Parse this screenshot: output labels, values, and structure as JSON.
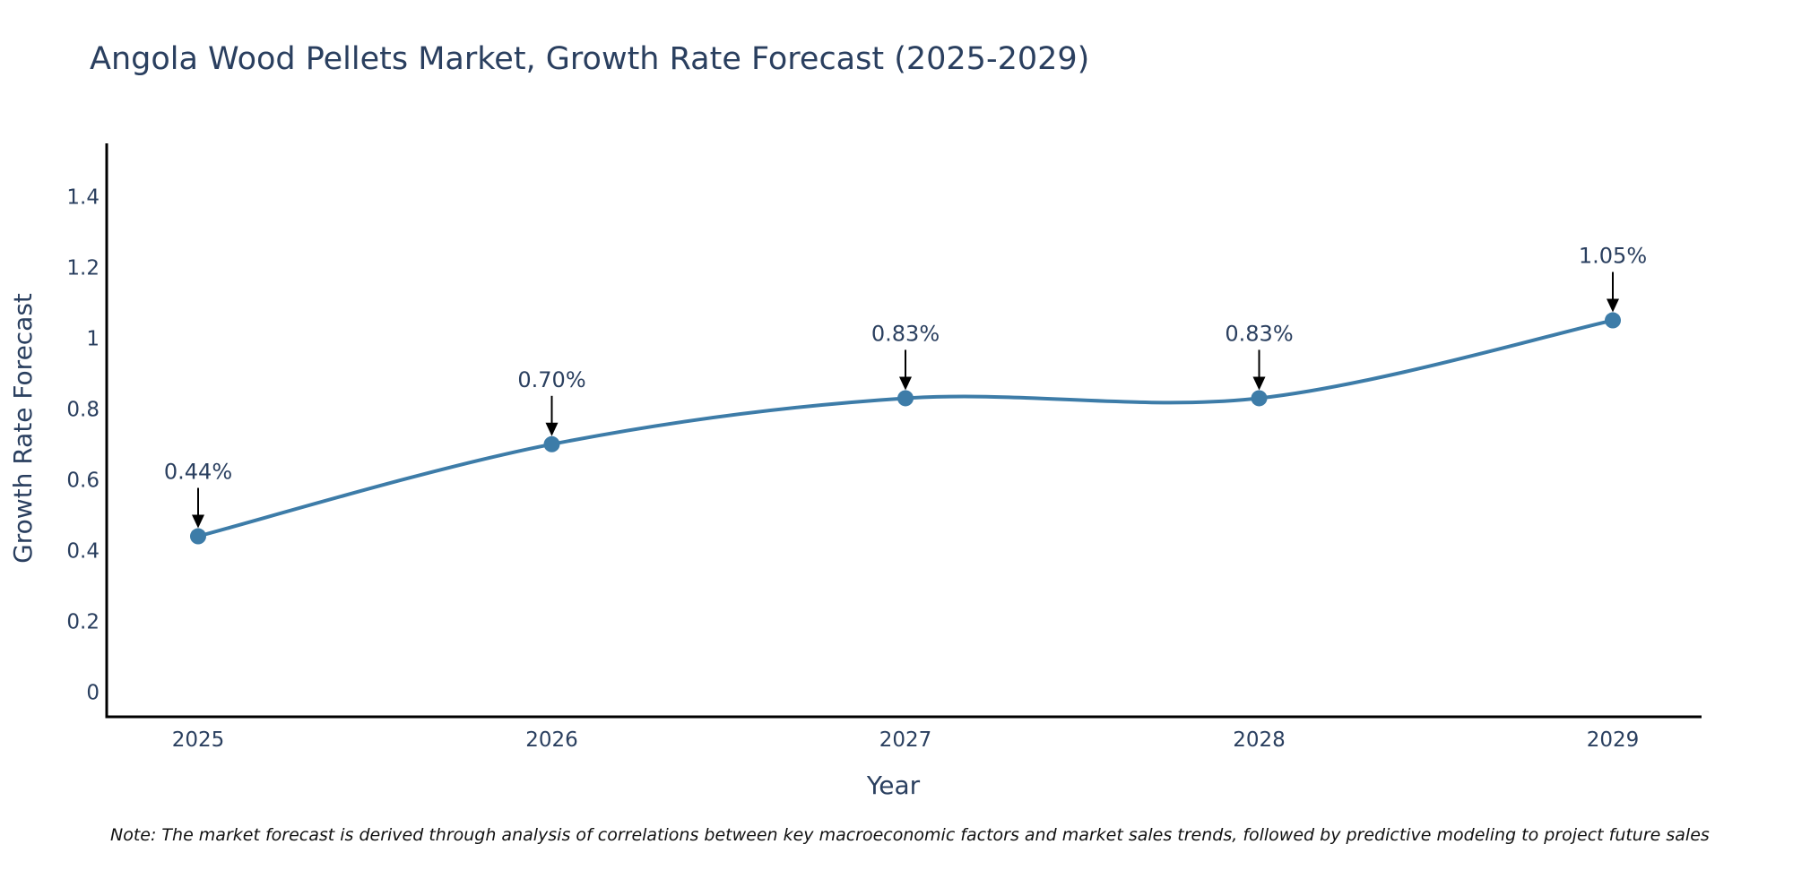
{
  "chart_data": {
    "type": "line",
    "title": "Angola Wood Pellets Market, Growth Rate Forecast (2025-2029)",
    "xlabel": "Year",
    "ylabel": "Growth Rate Forecast",
    "categories": [
      "2025",
      "2026",
      "2027",
      "2028",
      "2029"
    ],
    "values": [
      0.44,
      0.7,
      0.83,
      0.83,
      1.05
    ],
    "data_labels": [
      "0.44%",
      "0.70%",
      "0.83%",
      "0.83%",
      "1.05%"
    ],
    "ylim": [
      -0.07,
      1.55
    ],
    "yticks": [
      0,
      0.2,
      0.4,
      0.6,
      0.8,
      1,
      1.2,
      1.4
    ],
    "ytick_labels": [
      "0",
      "0.2",
      "0.4",
      "0.6",
      "0.8",
      "1",
      "1.2",
      "1.4"
    ],
    "grid": false,
    "line_color": "#3d7ca8",
    "marker_color": "#3d7ca8",
    "note": "Note: The market forecast is derived through analysis of correlations between key macroeconomic factors and market sales trends, followed by predictive modeling to project future sales"
  }
}
